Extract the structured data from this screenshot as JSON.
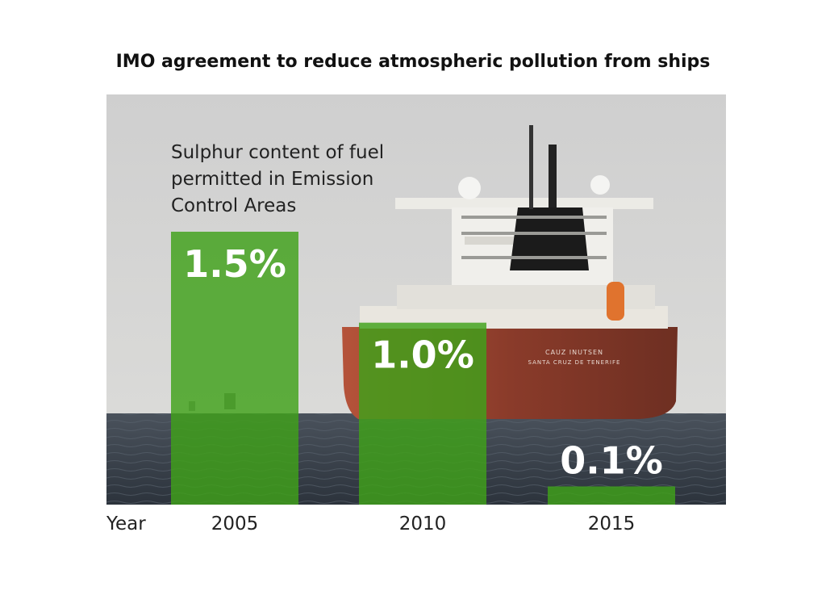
{
  "title": "IMO agreement to reduce atmospheric pollution from ships",
  "subtitle_lines": [
    "Sulphur content of fuel",
    "permitted in Emission",
    "Control Areas"
  ],
  "colors": {
    "bar": "#3fa11a",
    "bar_dark": "#1f7a12",
    "sky": "#d2d2d2",
    "sea": "#3d4652"
  },
  "ship": {
    "name_line1": "CAUZ INUTSEN",
    "name_line2": "SANTA CRUZ DE TENERIFE"
  },
  "x_axis_label": "Year",
  "chart_data": {
    "type": "bar",
    "title": "IMO agreement to reduce atmospheric pollution from ships",
    "subtitle": "Sulphur content of fuel permitted in Emission Control Areas",
    "xlabel": "Year",
    "ylabel": "",
    "categories": [
      "2005",
      "2010",
      "2015"
    ],
    "values": [
      1.5,
      1.0,
      0.1
    ],
    "value_labels": [
      "1.5%",
      "1.0%",
      "0.1%"
    ],
    "ylim": [
      0,
      1.5
    ]
  }
}
